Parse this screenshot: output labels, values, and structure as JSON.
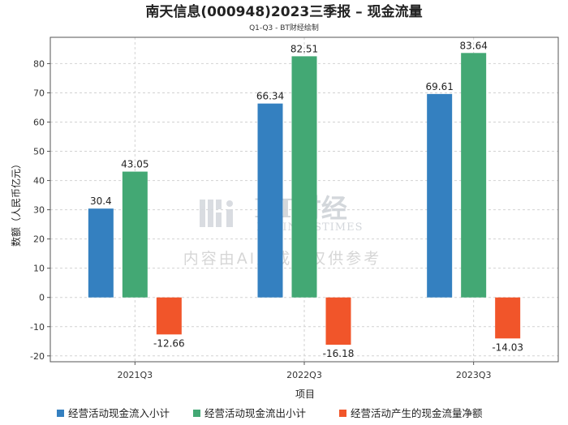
{
  "chart_data": {
    "type": "bar",
    "title": "南天信息(000948)2023三季报 – 现金流量",
    "subtitle": "Q1-Q3 - BT财经绘制",
    "xlabel": "项目",
    "ylabel": "数额（人民币亿元）",
    "categories": [
      "2021Q3",
      "2022Q3",
      "2023Q3"
    ],
    "ylim": [
      -22,
      89
    ],
    "yticks": [
      -20,
      -10,
      0,
      10,
      20,
      30,
      40,
      50,
      60,
      70,
      80
    ],
    "grid": true,
    "legend_position": "bottom",
    "series": [
      {
        "name": "经营活动现金流入小计",
        "color": "#3480c0",
        "values": [
          30.4,
          66.34,
          69.61
        ],
        "labels": [
          "30.4",
          "66.34",
          "69.61"
        ]
      },
      {
        "name": "经营活动现金流出小计",
        "color": "#43a874",
        "values": [
          43.05,
          82.51,
          83.64
        ],
        "labels": [
          "43.05",
          "82.51",
          "83.64"
        ]
      },
      {
        "name": "经营活动产生的现金流量净额",
        "color": "#f1552a",
        "values": [
          -12.66,
          -16.18,
          -14.03
        ],
        "labels": [
          "-12.66",
          "-16.18",
          "-14.03"
        ]
      }
    ]
  },
  "watermark": {
    "brand": "BT财经",
    "brand_sub": "BUSINESSTIMES",
    "note": "内容由AI生成，仅供参考"
  }
}
